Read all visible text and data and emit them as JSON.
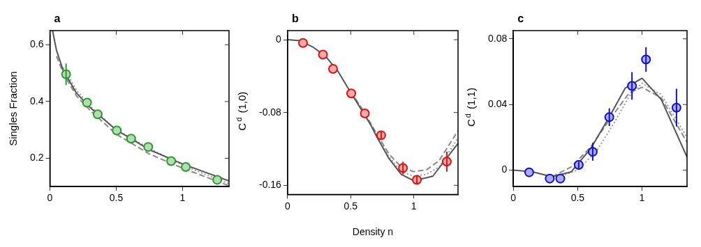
{
  "chart_data": [
    {
      "type": "scatter",
      "title": "a",
      "ylabel": "Singles Fraction",
      "xlim": [
        0,
        1.35
      ],
      "xticks": [
        0,
        0.5,
        1
      ],
      "ylim": [
        0.1,
        0.65
      ],
      "yticks": [
        0.2,
        0.4,
        0.6
      ],
      "grid": false,
      "legend": false,
      "series": [
        {
          "type": "line",
          "color": "#555555",
          "line_style": "solid",
          "marker": "none",
          "x": [
            0.02,
            0.05,
            0.1,
            0.2,
            0.3,
            0.5,
            0.75,
            1.0,
            1.35
          ],
          "values": [
            0.65,
            0.58,
            0.51,
            0.43,
            0.38,
            0.3,
            0.23,
            0.18,
            0.12
          ]
        },
        {
          "type": "line",
          "color": "#888888",
          "line_style": "dashed",
          "marker": "none",
          "x": [
            0.05,
            0.1,
            0.2,
            0.3,
            0.5,
            0.75,
            1.0,
            1.35
          ],
          "values": [
            0.56,
            0.5,
            0.42,
            0.37,
            0.285,
            0.215,
            0.165,
            0.103
          ]
        },
        {
          "type": "line",
          "color": "#999999",
          "line_style": "dotted",
          "marker": "none",
          "x": [
            0.1,
            0.2,
            0.3,
            0.5,
            0.75,
            1.0,
            1.35
          ],
          "values": [
            0.52,
            0.44,
            0.385,
            0.3,
            0.235,
            0.175,
            0.11
          ]
        },
        {
          "type": "scatter",
          "color": "#2a9a2a",
          "marker": "circle",
          "x": [
            0.122,
            0.28,
            0.36,
            0.504,
            0.612,
            0.741,
            0.914,
            1.024,
            1.261
          ],
          "values": [
            0.496,
            0.396,
            0.355,
            0.298,
            0.269,
            0.24,
            0.19,
            0.169,
            0.124
          ],
          "errors": [
            0.038,
            null,
            null,
            null,
            null,
            null,
            null,
            null,
            null
          ]
        }
      ]
    },
    {
      "type": "scatter",
      "title": "b",
      "ylabel": "C$^{d}$ (1,0)",
      "xlabel": "Density n",
      "xlim": [
        0,
        1.35
      ],
      "xticks": [
        0,
        0.5,
        1
      ],
      "ylim": [
        -0.17,
        0.01
      ],
      "yticks": [
        -0.16,
        -0.08,
        0
      ],
      "grid": false,
      "legend": false,
      "series": [
        {
          "type": "line",
          "color": "#555555",
          "line_style": "solid",
          "marker": "none",
          "x": [
            0,
            0.1,
            0.2,
            0.3,
            0.4,
            0.5,
            0.66,
            0.7,
            0.8,
            0.9,
            1.0,
            1.15,
            1.35
          ],
          "values": [
            0,
            -0.001,
            -0.008,
            -0.018,
            -0.035,
            -0.058,
            -0.094,
            -0.105,
            -0.13,
            -0.148,
            -0.155,
            -0.15,
            -0.114
          ]
        },
        {
          "type": "line",
          "color": "#888888",
          "line_style": "dashed",
          "marker": "none",
          "x": [
            0.5,
            0.6,
            0.7,
            0.8,
            0.9,
            1.0,
            1.1,
            1.2,
            1.35
          ],
          "values": [
            -0.057,
            -0.078,
            -0.102,
            -0.125,
            -0.14,
            -0.145,
            -0.143,
            -0.133,
            -0.1
          ]
        },
        {
          "type": "line",
          "color": "#999999",
          "line_style": "dotted",
          "marker": "none",
          "x": [
            0.5,
            0.6,
            0.7,
            0.8,
            0.9,
            1.0,
            1.1,
            1.2,
            1.35
          ],
          "values": [
            -0.057,
            -0.079,
            -0.104,
            -0.128,
            -0.145,
            -0.15,
            -0.148,
            -0.14,
            -0.108
          ]
        },
        {
          "type": "scatter",
          "color": "#e01010",
          "marker": "circle",
          "x": [
            0.122,
            0.28,
            0.36,
            0.504,
            0.612,
            0.741,
            0.914,
            1.024,
            1.261
          ],
          "values": [
            -0.0036,
            -0.0164,
            -0.032,
            -0.059,
            -0.081,
            -0.105,
            -0.141,
            -0.154,
            -0.134
          ],
          "errors": [
            null,
            null,
            null,
            null,
            null,
            0.004,
            0.007,
            0.005,
            0.011
          ]
        }
      ]
    },
    {
      "type": "scatter",
      "title": "c",
      "ylabel": "C$^{d}$ (1,1)",
      "xlim": [
        0,
        1.35
      ],
      "xticks": [
        0,
        0.5,
        1
      ],
      "ylim": [
        -0.01,
        0.085
      ],
      "yticks": [
        0,
        0.04,
        0.08
      ],
      "grid": false,
      "legend": false,
      "series": [
        {
          "type": "line",
          "color": "#555555",
          "line_style": "solid",
          "marker": "none",
          "x": [
            0,
            0.15,
            0.3,
            0.45,
            0.6,
            0.75,
            0.87,
            1.0,
            1.15,
            1.35
          ],
          "values": [
            0,
            -0.001,
            -0.004,
            -0.001,
            0.013,
            0.033,
            0.05,
            0.056,
            0.043,
            0.008
          ]
        },
        {
          "type": "line",
          "color": "#888888",
          "line_style": "dashed",
          "marker": "none",
          "x": [
            0.3,
            0.45,
            0.6,
            0.75,
            0.9,
            1.0,
            1.15,
            1.35
          ],
          "values": [
            -0.004,
            0.002,
            0.014,
            0.031,
            0.047,
            0.0505,
            0.044,
            0.017
          ]
        },
        {
          "type": "line",
          "color": "#999999",
          "line_style": "dotted",
          "marker": "none",
          "x": [
            0.35,
            0.5,
            0.65,
            0.8,
            0.9,
            1.0,
            1.15,
            1.35
          ],
          "values": [
            -0.004,
            0,
            0.012,
            0.031,
            0.045,
            0.053,
            0.046,
            0.02
          ]
        },
        {
          "type": "scatter",
          "color": "#1010d0",
          "marker": "circle",
          "x": [
            0.123,
            0.283,
            0.365,
            0.508,
            0.617,
            0.746,
            0.922,
            1.031,
            1.268
          ],
          "values": [
            -0.0013,
            -0.0051,
            -0.0051,
            0.0032,
            0.0112,
            0.0323,
            0.0513,
            0.0674,
            0.0381
          ],
          "errors": [
            null,
            null,
            null,
            0.002,
            0.0054,
            0.0054,
            0.0084,
            0.0075,
            0.0115
          ]
        }
      ]
    }
  ]
}
